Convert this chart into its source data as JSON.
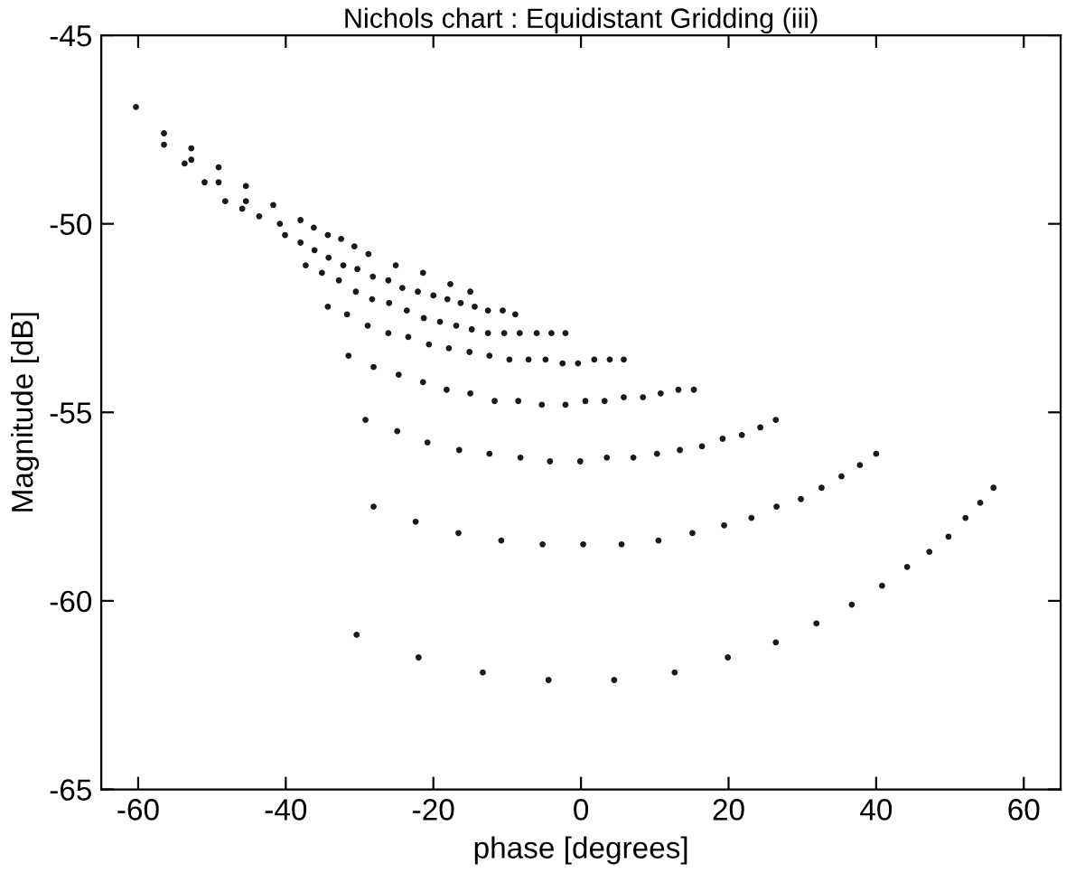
{
  "chart_data": {
    "type": "scatter",
    "title": "Nichols chart : Equidistant Gridding (iii)",
    "xlabel": "phase [degrees]",
    "ylabel": "Magnitude [dB]",
    "xlim": [
      -65,
      65
    ],
    "ylim": [
      -65,
      -45
    ],
    "xticks": [
      -60,
      -40,
      -20,
      0,
      20,
      40,
      60
    ],
    "yticks": [
      -65,
      -60,
      -55,
      -50,
      -45
    ],
    "grid": false,
    "marker": "circle",
    "series": [
      {
        "color": "#1a1a1a",
        "x": [
          -60.3,
          -56.5,
          -52.8,
          -49.1,
          -45.4,
          -41.7,
          -38.0,
          -34.3,
          -30.7,
          -56.5,
          -53.7,
          -51.0,
          -48.2,
          -45.9,
          -43.6,
          -40.8,
          -52.8,
          -49.1,
          -45.4
        ],
        "values": [
          -46.9,
          -47.6,
          -48.0,
          -48.5,
          -49.0,
          -49.5,
          -49.9,
          -50.3,
          -50.6,
          -47.9,
          -48.4,
          -48.9,
          -49.4,
          -49.6,
          -49.8,
          -50.0,
          -48.3,
          -48.9,
          -49.4
        ]
      },
      {
        "color": "#1a1a1a",
        "x": [
          -36.2,
          -32.5,
          -28.8,
          -25.1,
          -21.4,
          -17.7,
          -15.0
        ],
        "values": [
          -50.1,
          -50.4,
          -50.8,
          -51.1,
          -51.3,
          -51.6,
          -51.8
        ]
      },
      {
        "color": "#1a1a1a",
        "x": [
          -40.1,
          -38.0,
          -36.1,
          -34.2,
          -32.2,
          -30.3,
          -28.2,
          -26.1,
          -24.2,
          -22.1,
          -20.0,
          -18.1,
          -16.3,
          -14.4,
          -12.6,
          -10.6,
          -8.9
        ],
        "values": [
          -50.3,
          -50.5,
          -50.7,
          -50.9,
          -51.1,
          -51.2,
          -51.4,
          -51.5,
          -51.7,
          -51.8,
          -51.9,
          -52.0,
          -52.1,
          -52.2,
          -52.3,
          -52.3,
          -52.4
        ]
      },
      {
        "color": "#1a1a1a",
        "x": [
          -37.3,
          -35.1,
          -32.8,
          -30.5,
          -28.3,
          -26.0,
          -23.6,
          -21.3,
          -19.1,
          -16.9,
          -14.8,
          -12.6,
          -10.4,
          -8.3,
          -6.0,
          -4.0,
          -2.1
        ],
        "values": [
          -51.1,
          -51.3,
          -51.5,
          -51.8,
          -52.0,
          -52.1,
          -52.3,
          -52.5,
          -52.6,
          -52.7,
          -52.8,
          -52.9,
          -52.9,
          -52.9,
          -52.9,
          -52.9,
          -52.9
        ]
      },
      {
        "color": "#1a1a1a",
        "x": [
          -34.3,
          -31.7,
          -28.9,
          -26.1,
          -23.4,
          -20.6,
          -17.9,
          -15.1,
          -12.4,
          -9.7,
          -7.1,
          -4.8,
          -2.5,
          -0.4,
          1.8,
          3.9,
          5.8
        ],
        "values": [
          -52.2,
          -52.4,
          -52.7,
          -52.9,
          -53.0,
          -53.2,
          -53.3,
          -53.4,
          -53.5,
          -53.6,
          -53.6,
          -53.6,
          -53.7,
          -53.7,
          -53.6,
          -53.6,
          -53.6
        ]
      },
      {
        "color": "#1a1a1a",
        "x": [
          -31.5,
          -28.1,
          -24.7,
          -21.4,
          -18.2,
          -15.0,
          -11.7,
          -8.5,
          -5.3,
          -2.1,
          0.6,
          3.2,
          5.8,
          8.4,
          10.8,
          13.2,
          15.3
        ],
        "values": [
          -53.5,
          -53.8,
          -54.0,
          -54.2,
          -54.4,
          -54.5,
          -54.7,
          -54.7,
          -54.8,
          -54.8,
          -54.7,
          -54.7,
          -54.6,
          -54.6,
          -54.5,
          -54.4,
          -54.4
        ]
      },
      {
        "color": "#1a1a1a",
        "x": [
          -29.2,
          -24.9,
          -20.8,
          -16.5,
          -12.4,
          -8.2,
          -4.2,
          -0.1,
          3.5,
          7.1,
          10.3,
          13.4,
          16.4,
          19.2,
          21.8,
          24.3,
          26.4
        ],
        "values": [
          -55.2,
          -55.5,
          -55.8,
          -56.0,
          -56.1,
          -56.2,
          -56.3,
          -56.3,
          -56.2,
          -56.2,
          -56.1,
          -56.0,
          -55.9,
          -55.7,
          -55.6,
          -55.4,
          -55.2
        ]
      },
      {
        "color": "#1a1a1a",
        "x": [
          -28.1,
          -22.4,
          -16.6,
          -10.8,
          -5.2,
          0.3,
          5.5,
          10.5,
          15.1,
          19.4,
          23.1,
          26.5,
          29.8,
          32.6,
          35.3,
          37.8,
          40.0
        ],
        "values": [
          -57.5,
          -57.9,
          -58.2,
          -58.4,
          -58.5,
          -58.5,
          -58.5,
          -58.4,
          -58.2,
          -58.0,
          -57.8,
          -57.5,
          -57.3,
          -57.0,
          -56.7,
          -56.4,
          -56.1
        ]
      },
      {
        "color": "#1a1a1a",
        "x": [
          -30.4,
          -22.0,
          -13.3,
          -4.4,
          4.5,
          12.7,
          19.9,
          26.4,
          31.9,
          36.7,
          40.8,
          44.2,
          47.2,
          49.8,
          52.1,
          54.1,
          55.9
        ],
        "values": [
          -60.9,
          -61.5,
          -61.9,
          -62.1,
          -62.1,
          -61.9,
          -61.5,
          -61.1,
          -60.6,
          -60.1,
          -59.6,
          -59.1,
          -58.7,
          -58.3,
          -57.8,
          -57.4,
          -57.0
        ]
      }
    ]
  }
}
